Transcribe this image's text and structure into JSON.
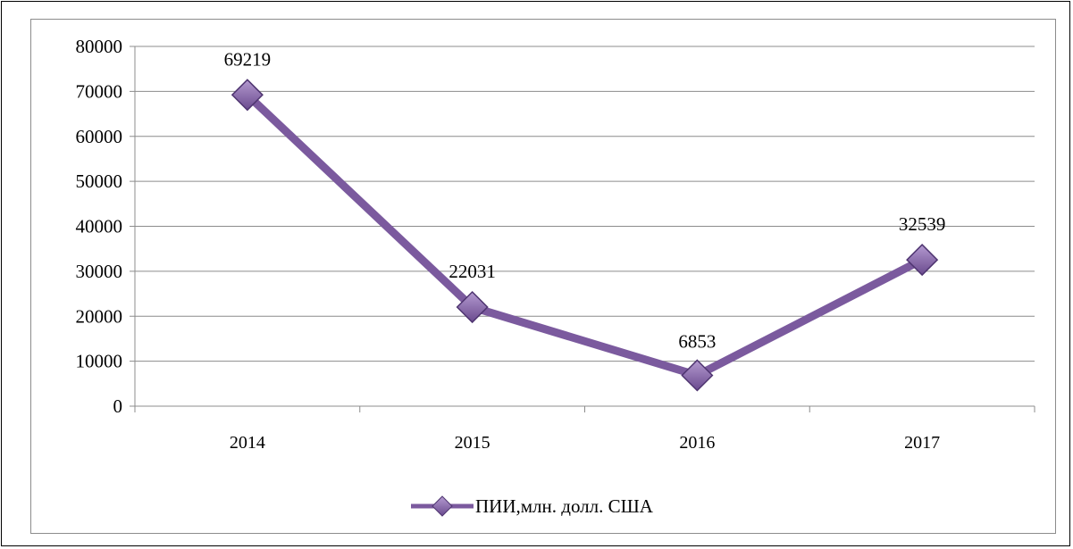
{
  "chart_data": {
    "type": "line",
    "categories": [
      "2014",
      "2015",
      "2016",
      "2017"
    ],
    "series": [
      {
        "name": "ПИИ,млн. долл. США",
        "values": [
          69219,
          22031,
          6853,
          32539
        ],
        "color": "#7b5a9e"
      }
    ],
    "ylim": [
      0,
      80000
    ],
    "yticks": [
      0,
      10000,
      20000,
      30000,
      40000,
      50000,
      60000,
      70000,
      80000
    ],
    "data_labels": [
      "69219",
      "22031",
      "6853",
      "32539"
    ],
    "grid": true,
    "legend_position": "bottom",
    "title": "",
    "xlabel": "",
    "ylabel": ""
  }
}
